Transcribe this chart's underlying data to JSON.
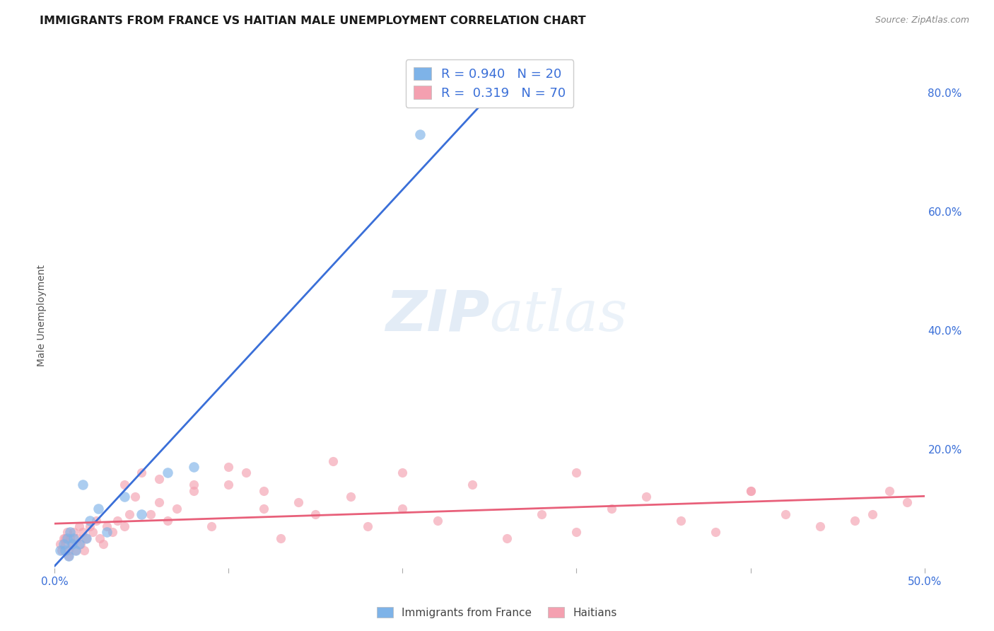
{
  "title": "IMMIGRANTS FROM FRANCE VS HAITIAN MALE UNEMPLOYMENT CORRELATION CHART",
  "source": "Source: ZipAtlas.com",
  "ylabel": "Male Unemployment",
  "xlim": [
    0.0,
    0.5
  ],
  "ylim": [
    0.0,
    0.85
  ],
  "grid_color": "#d0d0d0",
  "background_color": "#ffffff",
  "france_color": "#7EB3E8",
  "haiti_color": "#F4A0B0",
  "france_line_color": "#3A6FD8",
  "haiti_line_color": "#E8607A",
  "legend_R_france": "0.940",
  "legend_N_france": "20",
  "legend_R_haiti": "0.319",
  "legend_N_haiti": "70",
  "france_scatter_x": [
    0.003,
    0.005,
    0.006,
    0.007,
    0.008,
    0.009,
    0.01,
    0.011,
    0.012,
    0.014,
    0.016,
    0.018,
    0.02,
    0.025,
    0.03,
    0.04,
    0.05,
    0.065,
    0.08,
    0.21
  ],
  "france_scatter_y": [
    0.03,
    0.04,
    0.03,
    0.05,
    0.02,
    0.06,
    0.04,
    0.05,
    0.03,
    0.04,
    0.14,
    0.05,
    0.08,
    0.1,
    0.06,
    0.12,
    0.09,
    0.16,
    0.17,
    0.73
  ],
  "haiti_scatter_x": [
    0.003,
    0.004,
    0.005,
    0.006,
    0.007,
    0.008,
    0.009,
    0.01,
    0.011,
    0.012,
    0.013,
    0.014,
    0.015,
    0.016,
    0.017,
    0.018,
    0.02,
    0.022,
    0.024,
    0.026,
    0.028,
    0.03,
    0.033,
    0.036,
    0.04,
    0.043,
    0.046,
    0.05,
    0.055,
    0.06,
    0.065,
    0.07,
    0.08,
    0.09,
    0.1,
    0.11,
    0.12,
    0.13,
    0.14,
    0.15,
    0.16,
    0.17,
    0.18,
    0.2,
    0.22,
    0.24,
    0.26,
    0.28,
    0.3,
    0.32,
    0.34,
    0.36,
    0.38,
    0.4,
    0.42,
    0.44,
    0.46,
    0.47,
    0.48,
    0.49,
    0.04,
    0.06,
    0.08,
    0.1,
    0.12,
    0.2,
    0.3,
    0.4,
    0.006,
    0.008
  ],
  "haiti_scatter_y": [
    0.04,
    0.03,
    0.05,
    0.04,
    0.06,
    0.03,
    0.05,
    0.04,
    0.06,
    0.03,
    0.05,
    0.07,
    0.04,
    0.06,
    0.03,
    0.05,
    0.07,
    0.06,
    0.08,
    0.05,
    0.04,
    0.07,
    0.06,
    0.08,
    0.14,
    0.09,
    0.12,
    0.16,
    0.09,
    0.11,
    0.08,
    0.1,
    0.13,
    0.07,
    0.14,
    0.16,
    0.13,
    0.05,
    0.11,
    0.09,
    0.18,
    0.12,
    0.07,
    0.1,
    0.08,
    0.14,
    0.05,
    0.09,
    0.06,
    0.1,
    0.12,
    0.08,
    0.06,
    0.13,
    0.09,
    0.07,
    0.08,
    0.09,
    0.13,
    0.11,
    0.07,
    0.15,
    0.14,
    0.17,
    0.1,
    0.16,
    0.16,
    0.13,
    0.05,
    0.02
  ]
}
